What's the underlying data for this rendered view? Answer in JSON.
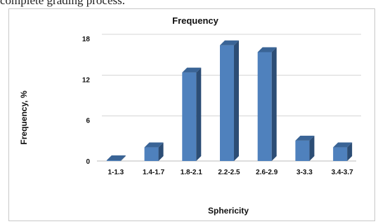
{
  "page": {
    "top_text": "complete grading process."
  },
  "chart_data": {
    "type": "bar",
    "title": "Frequency",
    "xlabel": "Sphericity",
    "ylabel": "Frequency, %",
    "categories": [
      "1-1.3",
      "1.4-1.7",
      "1.8-2.1",
      "2.2-2.5",
      "2.6-2.9",
      "3-3.3",
      "3.4-3.7"
    ],
    "values": [
      0.1,
      2,
      13,
      17,
      16,
      3,
      2
    ],
    "ylim": [
      0,
      18
    ],
    "yticks": [
      0,
      6,
      12,
      18
    ],
    "grid": true,
    "colors": {
      "bar_front": "#4f81bd",
      "bar_side": "#2c4d75",
      "bar_top": "#3a6496",
      "grid": "#d4d4d4"
    }
  }
}
